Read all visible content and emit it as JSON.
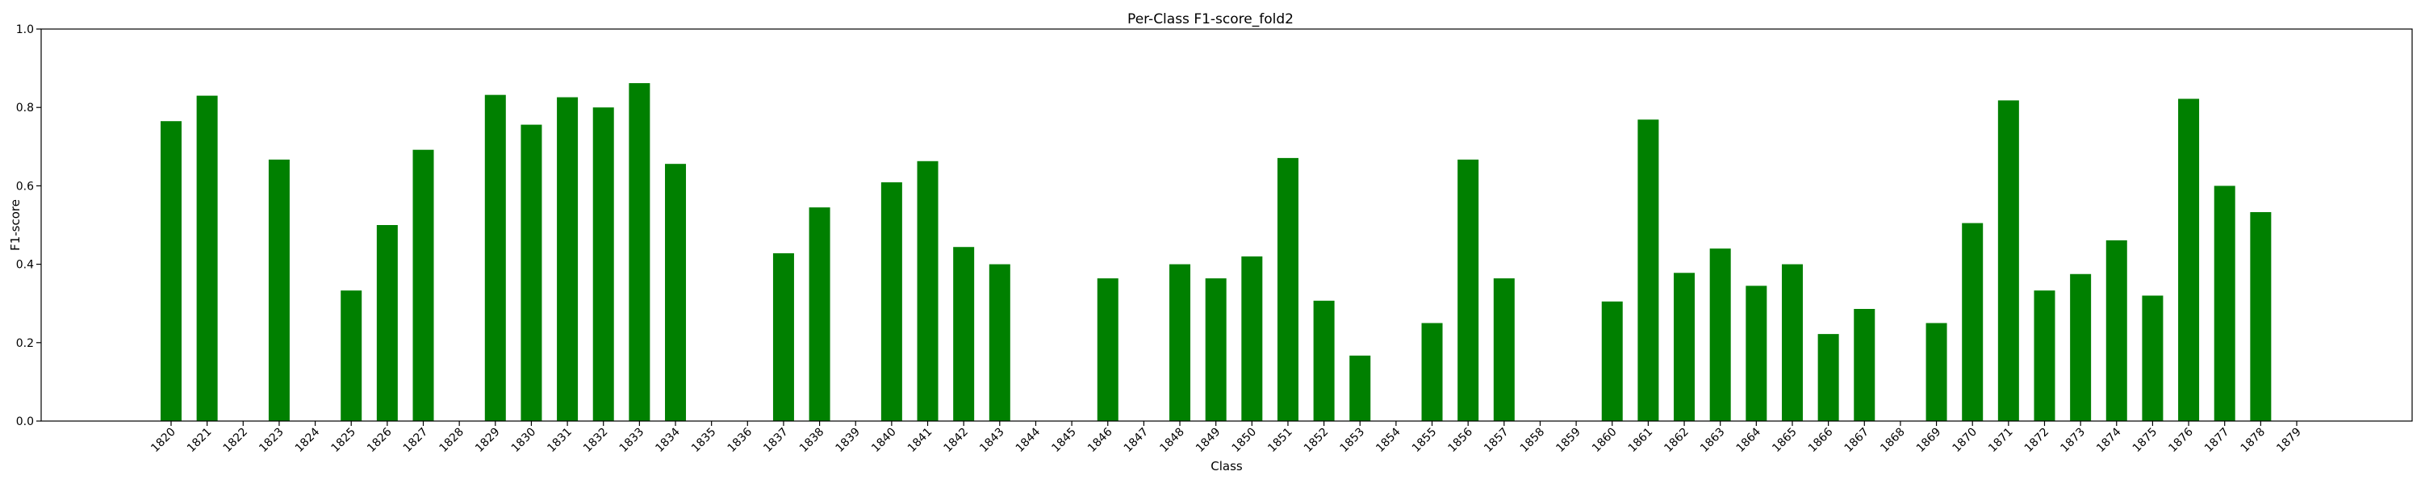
{
  "chart_data": {
    "type": "bar",
    "title": "Per-Class F1-score_fold2",
    "xlabel": "Class",
    "ylabel": "F1-score",
    "ylim": [
      0,
      1.0
    ],
    "yticks": [
      "0.0",
      "0.2",
      "0.4",
      "0.6",
      "0.8",
      "1.0"
    ],
    "grid": false,
    "bar_color": "#008000",
    "categories": [
      "1820",
      "1821",
      "1822",
      "1823",
      "1824",
      "1825",
      "1826",
      "1827",
      "1828",
      "1829",
      "1830",
      "1831",
      "1832",
      "1833",
      "1834",
      "1835",
      "1836",
      "1837",
      "1838",
      "1839",
      "1840",
      "1841",
      "1842",
      "1843",
      "1844",
      "1845",
      "1846",
      "1847",
      "1848",
      "1849",
      "1850",
      "1851",
      "1852",
      "1853",
      "1854",
      "1855",
      "1856",
      "1857",
      "1858",
      "1859",
      "1860",
      "1861",
      "1862",
      "1863",
      "1864",
      "1865",
      "1866",
      "1867",
      "1868",
      "1869",
      "1870",
      "1871",
      "1872",
      "1873",
      "1874",
      "1875",
      "1876",
      "1877",
      "1878",
      "1879"
    ],
    "values": [
      0.765,
      0.83,
      0,
      0.667,
      0,
      0.333,
      0.5,
      0.692,
      0,
      0.832,
      0.756,
      0.826,
      0.8,
      0.862,
      0.656,
      0,
      0,
      0.428,
      0.545,
      0,
      0.609,
      0.663,
      0.444,
      0.4,
      0,
      0,
      0.364,
      0,
      0.4,
      0.364,
      0.42,
      0.671,
      0.307,
      0.167,
      0,
      0.25,
      0.667,
      0.364,
      0,
      0,
      0.305,
      0.769,
      0.378,
      0.44,
      0.345,
      0.4,
      0.222,
      0.286,
      0,
      0.25,
      0.505,
      0.818,
      0.333,
      0.375,
      0.461,
      0.32,
      0.822,
      0.6,
      0.533,
      0
    ]
  }
}
